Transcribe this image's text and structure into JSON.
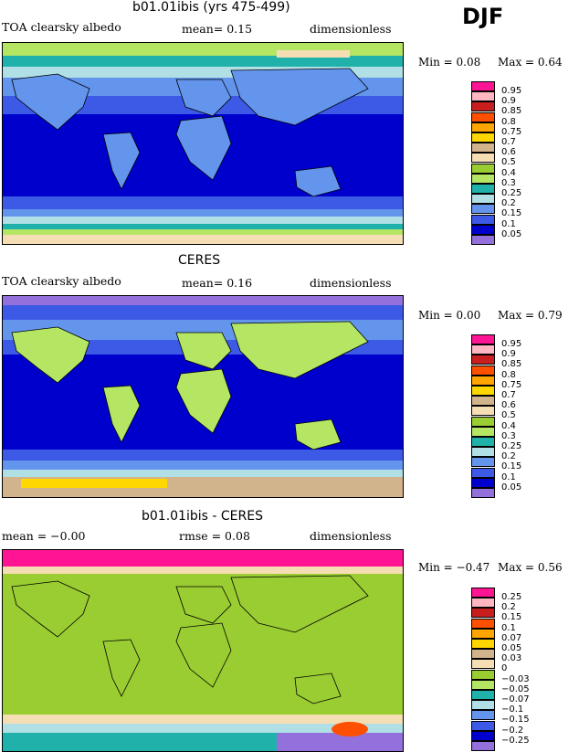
{
  "season": "DJF",
  "panels": [
    {
      "title": "b01.01ibis (yrs 475-499)",
      "left": "TOA clearsky albedo",
      "center": "mean=   0.15",
      "right": "dimensionless",
      "min": "Min =   0.08",
      "max": "Max =   0.64",
      "legend": [
        "0.95",
        "0.9",
        "0.85",
        "0.8",
        "0.75",
        "0.7",
        "0.6",
        "0.5",
        "0.4",
        "0.3",
        "0.25",
        "0.2",
        "0.15",
        "0.1",
        "0.05"
      ]
    },
    {
      "title": "CERES",
      "left": "TOA clearsky albedo",
      "center": "mean=   0.16",
      "right": "dimensionless",
      "min": "Min =   0.00",
      "max": "Max =   0.79",
      "legend": [
        "0.95",
        "0.9",
        "0.85",
        "0.8",
        "0.75",
        "0.7",
        "0.6",
        "0.5",
        "0.4",
        "0.3",
        "0.25",
        "0.2",
        "0.15",
        "0.1",
        "0.05"
      ]
    },
    {
      "title": "b01.01ibis - CERES",
      "left": "mean =  −0.00",
      "center": "rmse =   0.08",
      "right": "dimensionless",
      "min": "Min =  −0.47",
      "max": "Max =   0.56",
      "legend": [
        "0.25",
        "0.2",
        "0.15",
        "0.1",
        "0.07",
        "0.05",
        "0.03",
        "0",
        "−0.03",
        "−0.05",
        "−0.07",
        "−0.1",
        "−0.15",
        "−0.2",
        "−0.25"
      ]
    }
  ],
  "colors": {
    "abs_scale": [
      "#ff1493",
      "#ffb6c1",
      "#c81e1e",
      "#ff5000",
      "#ffa500",
      "#ffd700",
      "#d2b48c",
      "#f5deb3",
      "#9acd32",
      "#b4e664",
      "#20b2aa",
      "#b0e0e6",
      "#6495ed",
      "#3c5ae6",
      "#0000cd",
      "#9370db"
    ],
    "diff_scale": [
      "#ff1493",
      "#ffb6c1",
      "#c81e1e",
      "#ff5000",
      "#ffa500",
      "#ffd700",
      "#d2b48c",
      "#f5deb3",
      "#9acd32",
      "#b4e664",
      "#20b2aa",
      "#b0e0e6",
      "#6495ed",
      "#3c5ae6",
      "#0000cd",
      "#9370db"
    ]
  }
}
